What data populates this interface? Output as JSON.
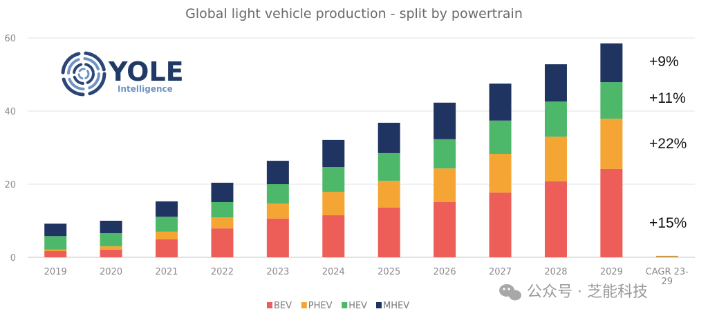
{
  "chart_data": {
    "type": "bar",
    "stacked": true,
    "title": "Global light vehicle production - split by powertrain",
    "xlabel": "",
    "ylabel": "",
    "ylim": [
      0,
      60
    ],
    "yticks": [
      0,
      20,
      40,
      60
    ],
    "grid": true,
    "legend_position": "bottom",
    "categories": [
      "2019",
      "2020",
      "2021",
      "2022",
      "2023",
      "2024",
      "2025",
      "2026",
      "2027",
      "2028",
      "2029",
      "CAGR 23-29"
    ],
    "series": [
      {
        "name": "BEV",
        "color": "#ec5e57",
        "values": [
          1.7,
          2.1,
          4.9,
          7.9,
          10.6,
          11.5,
          13.6,
          15.1,
          17.7,
          20.8,
          24.2,
          0
        ]
      },
      {
        "name": "PHEV",
        "color": "#f5a533",
        "values": [
          0.4,
          0.9,
          2.1,
          3.0,
          4.1,
          6.4,
          7.3,
          9.2,
          10.6,
          12.2,
          13.7,
          0.4
        ]
      },
      {
        "name": "HEV",
        "color": "#4db86a",
        "values": [
          3.7,
          3.6,
          4.1,
          4.2,
          5.3,
          6.8,
          7.6,
          8.0,
          9.1,
          9.6,
          10.0,
          0
        ]
      },
      {
        "name": "MHEV",
        "color": "#1f3461",
        "values": [
          3.4,
          3.4,
          4.2,
          5.3,
          6.4,
          7.4,
          8.3,
          10.0,
          10.1,
          10.2,
          10.6,
          0
        ]
      }
    ],
    "annotations": [
      {
        "series": "MHEV",
        "text": "+9%"
      },
      {
        "series": "HEV",
        "text": "+11%"
      },
      {
        "series": "PHEV",
        "text": "+22%"
      },
      {
        "series": "BEV",
        "text": "+15%"
      }
    ]
  },
  "logo": {
    "name": "YOLE",
    "subtitle": "Intelligence"
  },
  "watermark": {
    "text": "公众号 · 芝能科技"
  },
  "colors": {
    "axis": "#d9d9d9",
    "grid": "#e3e3e3"
  }
}
